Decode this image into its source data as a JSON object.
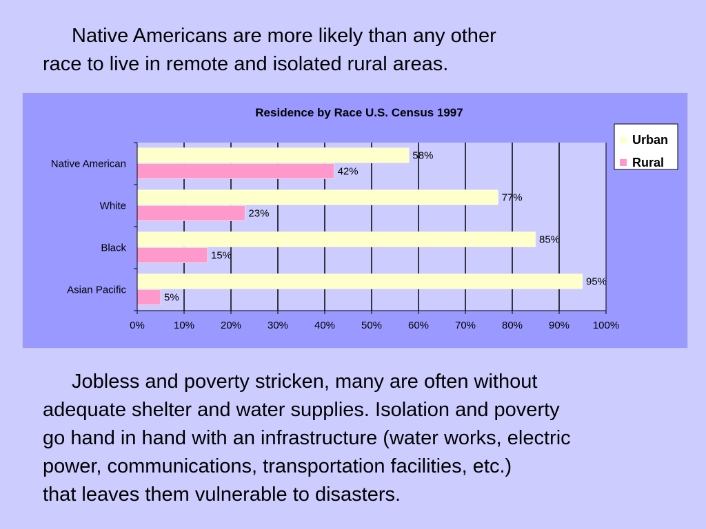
{
  "intro": {
    "lines": [
      "Native Americans are more likely than any other",
      "race to live in remote and isolated rural areas."
    ]
  },
  "body_text": {
    "lines": [
      "Jobless and poverty stricken, many are often without",
      "adequate shelter and water supplies.  Isolation and poverty",
      "go hand in hand with an infrastructure (water works, electric",
      "power, communications, transportation facilities, etc.)",
      "that leaves them vulnerable to disasters."
    ]
  },
  "colors": {
    "background": "#ccccff",
    "chart_panel": "#9999ff",
    "plot_area": "#ccccff",
    "urban": "#ffffcc",
    "rural": "#ff99cc"
  },
  "chart_data": {
    "type": "bar",
    "orientation": "horizontal",
    "title": "Residence by Race U.S. Census 1997",
    "categories": [
      "Native American",
      "White",
      "Black",
      "Asian Pacific"
    ],
    "series": [
      {
        "name": "Urban",
        "values": [
          58,
          77,
          85,
          95
        ],
        "labels": [
          "58%",
          "77%",
          "85%",
          "95%"
        ]
      },
      {
        "name": "Rural",
        "values": [
          42,
          23,
          15,
          5
        ],
        "labels": [
          "42%",
          "23%",
          "15%",
          "5%"
        ]
      }
    ],
    "xlim": [
      0,
      100
    ],
    "x_ticks": [
      "0%",
      "10%",
      "20%",
      "30%",
      "40%",
      "50%",
      "60%",
      "70%",
      "80%",
      "90%",
      "100%"
    ],
    "unit": "%",
    "grid": true,
    "legend_position": "top-right"
  }
}
